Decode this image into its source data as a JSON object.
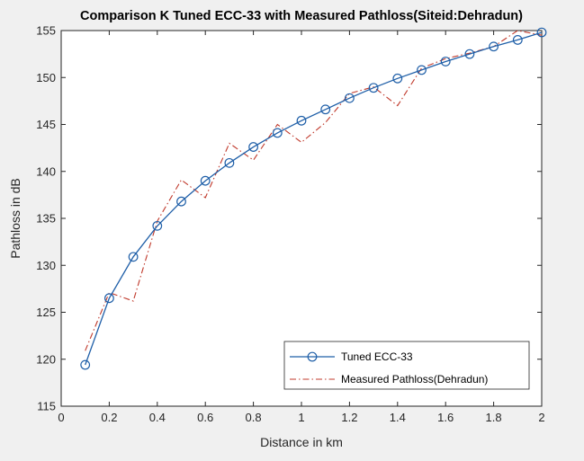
{
  "chart_data": {
    "type": "line",
    "title": "Comparison K Tuned ECC-33 with Measured Pathloss(Siteid:Dehradun)",
    "xlabel": "Distance in km",
    "ylabel": "Pathloss in dB",
    "xlim": [
      0,
      2
    ],
    "ylim": [
      115,
      155
    ],
    "xticks": [
      0,
      0.2,
      0.4,
      0.6,
      0.8,
      1,
      1.2,
      1.4,
      1.6,
      1.8,
      2
    ],
    "xtick_labels": [
      "0",
      "0.2",
      "0.4",
      "0.6",
      "0.8",
      "1",
      "1.2",
      "1.4",
      "1.6",
      "1.8",
      "2"
    ],
    "yticks": [
      115,
      120,
      125,
      130,
      135,
      140,
      145,
      150,
      155
    ],
    "ytick_labels": [
      "115",
      "120",
      "125",
      "130",
      "135",
      "140",
      "145",
      "150",
      "155"
    ],
    "grid": false,
    "legend_position": "bottom-right",
    "series": [
      {
        "name": "Tuned ECC-33",
        "color": "#1f5fa8",
        "style": "solid line with circle markers",
        "x": [
          0.1,
          0.2,
          0.3,
          0.4,
          0.5,
          0.6,
          0.7,
          0.8,
          0.9,
          1.0,
          1.1,
          1.2,
          1.3,
          1.4,
          1.5,
          1.6,
          1.7,
          1.8,
          1.9,
          2.0
        ],
        "y": [
          119.4,
          126.5,
          130.9,
          134.2,
          136.8,
          139.0,
          140.9,
          142.6,
          144.1,
          145.4,
          146.6,
          147.8,
          148.9,
          149.9,
          150.8,
          151.7,
          152.5,
          153.3,
          154.0,
          154.8
        ]
      },
      {
        "name": "Measured Pathloss(Dehradun)",
        "color": "#c0392b",
        "style": "dash-dot line",
        "x": [
          0.1,
          0.2,
          0.3,
          0.4,
          0.5,
          0.6,
          0.7,
          0.8,
          0.9,
          1.0,
          1.1,
          1.2,
          1.3,
          1.4,
          1.5,
          1.6,
          1.7,
          1.8,
          1.9,
          2.0
        ],
        "y": [
          120.9,
          127.1,
          126.2,
          134.7,
          139.1,
          137.2,
          143.0,
          141.2,
          145.0,
          143.1,
          145.2,
          148.3,
          149.0,
          147.0,
          151.0,
          152.0,
          152.6,
          153.3,
          155.0,
          154.5
        ]
      }
    ]
  }
}
